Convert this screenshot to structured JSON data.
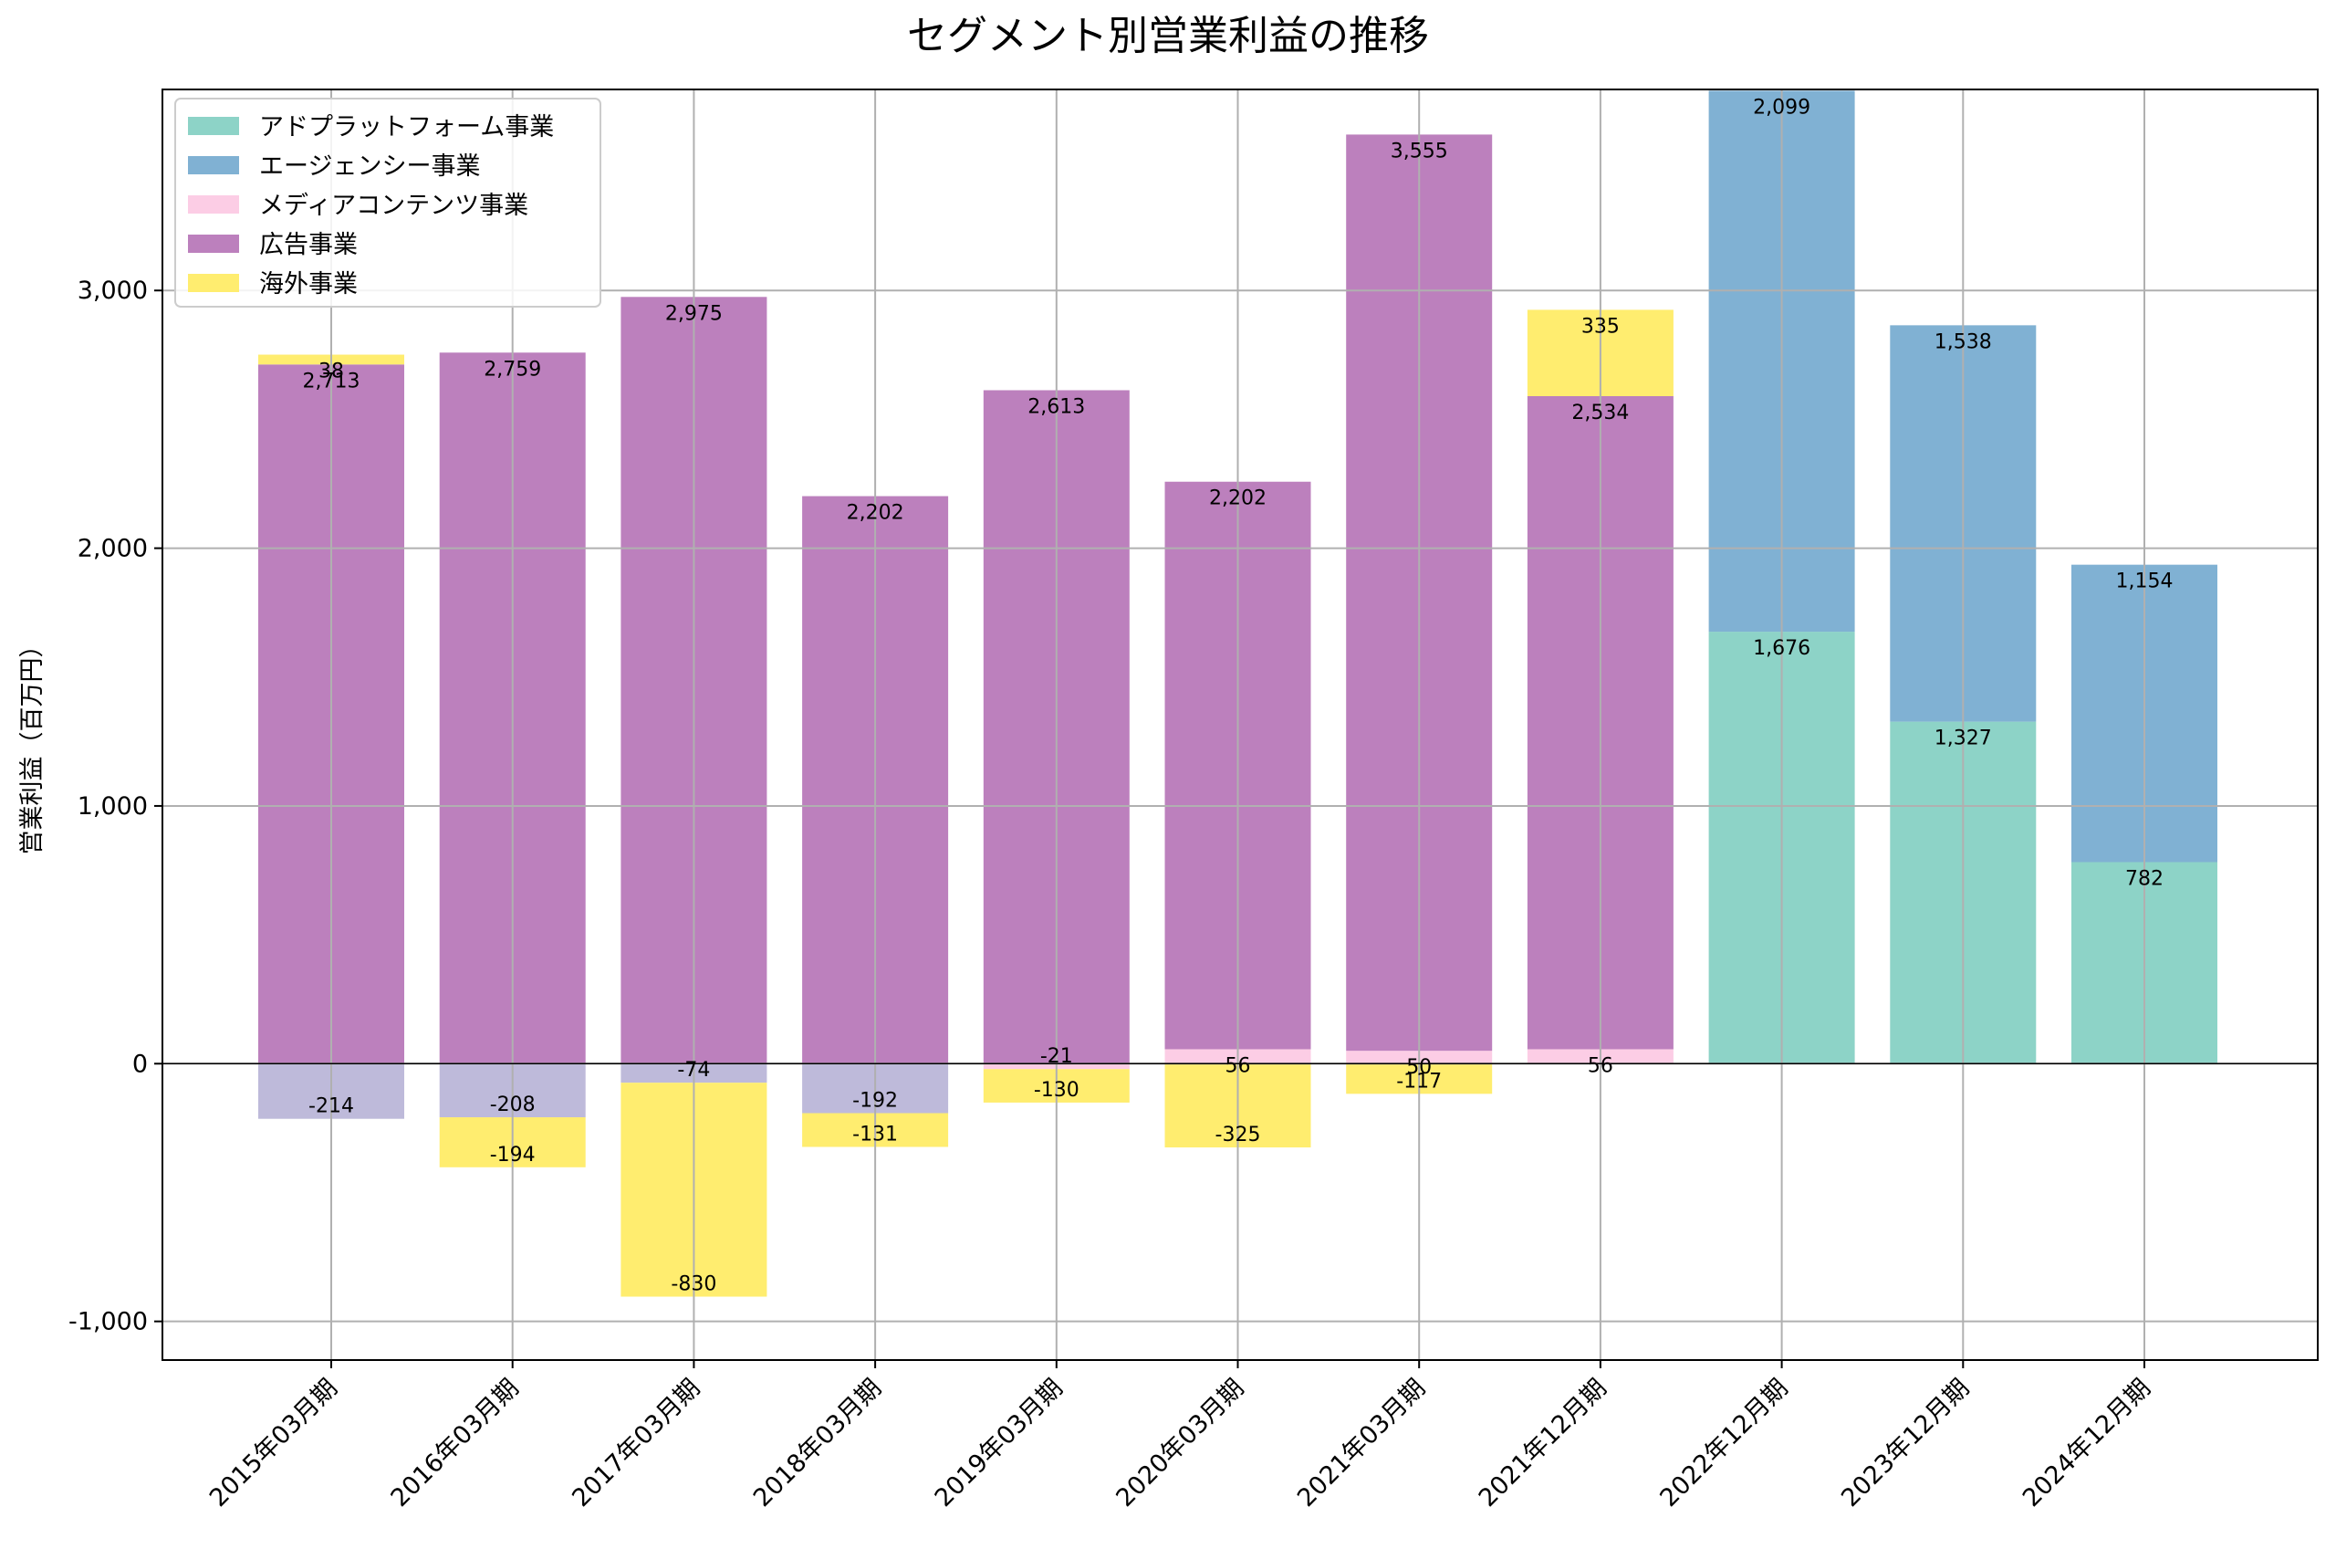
{
  "chart_data": {
    "type": "bar",
    "stacked": true,
    "title": "セグメント別営業利益の推移",
    "xlabel": "",
    "ylabel": "営業利益（百万円）",
    "ylim": [
      -1150,
      3780
    ],
    "yticks": [
      -1000,
      0,
      1000,
      2000,
      3000
    ],
    "ytick_labels": [
      "-1,000",
      "0",
      "1,000",
      "2,000",
      "3,000"
    ],
    "grid": true,
    "legend_position": "top-left",
    "categories": [
      "2015年03月期",
      "2016年03月期",
      "2017年03月期",
      "2018年03月期",
      "2019年03月期",
      "2020年03月期",
      "2021年03月期",
      "2021年12月期",
      "2022年12月期",
      "2023年12月期",
      "2024年12月期"
    ],
    "series": [
      {
        "name": "アドプラットフォーム事業",
        "color": "#8dd3c7",
        "legend": true,
        "values": [
          null,
          null,
          null,
          null,
          null,
          null,
          null,
          null,
          1676,
          1327,
          782
        ]
      },
      {
        "name": "エージェンシー事業",
        "color": "#80b1d3",
        "legend": true,
        "values": [
          null,
          null,
          null,
          null,
          null,
          null,
          null,
          null,
          2099,
          1538,
          1154
        ]
      },
      {
        "name": "メディアコンテンツ事業",
        "color": "#fccde5",
        "legend": true,
        "values": [
          null,
          null,
          null,
          null,
          -21,
          56,
          50,
          56,
          null,
          null,
          null
        ]
      },
      {
        "name": "",
        "color": "#bebada",
        "legend": false,
        "values": [
          -214,
          -208,
          -74,
          -192,
          null,
          null,
          null,
          null,
          null,
          null,
          null
        ]
      },
      {
        "name": "広告事業",
        "color": "#bc80bd",
        "legend": true,
        "values": [
          2713,
          2759,
          2975,
          2202,
          2613,
          2202,
          3555,
          2534,
          null,
          null,
          null
        ]
      },
      {
        "name": "海外事業",
        "color": "#ffed6f",
        "legend": true,
        "values": [
          38,
          -194,
          -830,
          -131,
          -130,
          -325,
          -117,
          335,
          null,
          null,
          null
        ]
      }
    ]
  }
}
